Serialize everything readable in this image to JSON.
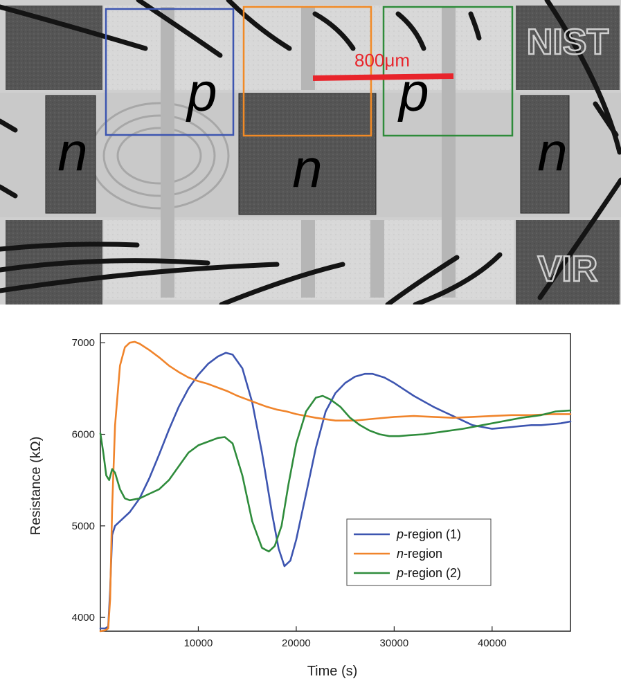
{
  "micrograph": {
    "scale_label": "800μm",
    "scale_color": "#e8242b",
    "region_labels": [
      "n",
      "p",
      "n",
      "p",
      "n"
    ],
    "logo_top": "NIST",
    "logo_bottom": "VIR",
    "box_colors": [
      "#3c55b0",
      "#f28a25",
      "#2e8b3a"
    ]
  },
  "chart_data": {
    "type": "line",
    "xlabel": "Time (s)",
    "ylabel": "Resistance (kΩ)",
    "xlim": [
      0,
      48000
    ],
    "ylim": [
      3850,
      7100
    ],
    "xticks": [
      10000,
      20000,
      30000,
      40000
    ],
    "yticks": [
      4000,
      5000,
      6000,
      7000
    ],
    "grid": false,
    "legend_position": "bottom-right",
    "series": [
      {
        "name": "p-region (1)",
        "name_italic": "p",
        "name_rest": "-region (1)",
        "color": "#3d55b0",
        "x": [
          0,
          500,
          800,
          1000,
          1200,
          1500,
          2000,
          3000,
          4000,
          5000,
          6000,
          7000,
          8000,
          9000,
          10000,
          11000,
          12000,
          12800,
          13500,
          14500,
          15500,
          16500,
          17500,
          18200,
          18800,
          19400,
          20000,
          21000,
          22000,
          23000,
          24000,
          25000,
          26000,
          27000,
          27800,
          29000,
          30000,
          31000,
          32000,
          33000,
          34000,
          35000,
          36000,
          37000,
          38000,
          39000,
          40000,
          41000,
          42000,
          43000,
          44000,
          45000,
          46000,
          47000,
          48000
        ],
        "y": [
          3880,
          3880,
          3900,
          4300,
          4900,
          5000,
          5050,
          5150,
          5300,
          5520,
          5780,
          6050,
          6300,
          6500,
          6650,
          6770,
          6850,
          6890,
          6870,
          6720,
          6350,
          5800,
          5150,
          4750,
          4560,
          4620,
          4850,
          5350,
          5850,
          6250,
          6450,
          6560,
          6630,
          6660,
          6660,
          6620,
          6560,
          6490,
          6420,
          6360,
          6300,
          6250,
          6200,
          6150,
          6100,
          6080,
          6060,
          6070,
          6080,
          6090,
          6100,
          6100,
          6110,
          6120,
          6140
        ]
      },
      {
        "name": "n-region",
        "name_italic": "n",
        "name_rest": "-region",
        "color": "#f0842b",
        "x": [
          0,
          500,
          800,
          1000,
          1200,
          1500,
          2000,
          2500,
          3000,
          3500,
          4000,
          5000,
          6000,
          7000,
          8000,
          9000,
          10000,
          11000,
          12000,
          13000,
          14000,
          15000,
          16000,
          17000,
          18000,
          19000,
          20000,
          22000,
          24000,
          26000,
          28000,
          30000,
          32000,
          34000,
          36000,
          38000,
          40000,
          42000,
          44000,
          46000,
          48000
        ],
        "y": [
          3850,
          3860,
          3880,
          4200,
          5200,
          6100,
          6750,
          6950,
          7000,
          7010,
          6990,
          6920,
          6840,
          6750,
          6680,
          6620,
          6580,
          6550,
          6510,
          6470,
          6420,
          6380,
          6340,
          6300,
          6270,
          6250,
          6220,
          6180,
          6150,
          6150,
          6170,
          6190,
          6200,
          6190,
          6180,
          6190,
          6200,
          6210,
          6210,
          6220,
          6220
        ]
      },
      {
        "name": "p-region (2)",
        "name_italic": "p",
        "name_rest": "-region (2)",
        "color": "#2f8c3c",
        "x": [
          0,
          300,
          600,
          900,
          1200,
          1500,
          2000,
          2500,
          3000,
          4000,
          5000,
          6000,
          7000,
          8000,
          9000,
          10000,
          11000,
          12000,
          12700,
          13500,
          14500,
          15500,
          16500,
          17200,
          17800,
          18500,
          19200,
          20000,
          21000,
          22000,
          22700,
          23500,
          24500,
          25500,
          26500,
          27500,
          28500,
          29500,
          30500,
          31500,
          33000,
          35000,
          37000,
          39000,
          41000,
          43000,
          45000,
          46500,
          48000
        ],
        "y": [
          6010,
          5800,
          5550,
          5500,
          5620,
          5580,
          5400,
          5300,
          5280,
          5300,
          5350,
          5400,
          5500,
          5650,
          5800,
          5880,
          5920,
          5960,
          5970,
          5900,
          5550,
          5050,
          4760,
          4720,
          4780,
          5000,
          5450,
          5900,
          6250,
          6400,
          6420,
          6380,
          6300,
          6180,
          6100,
          6040,
          6000,
          5980,
          5980,
          5990,
          6000,
          6030,
          6060,
          6100,
          6140,
          6180,
          6210,
          6250,
          6260
        ]
      }
    ]
  }
}
